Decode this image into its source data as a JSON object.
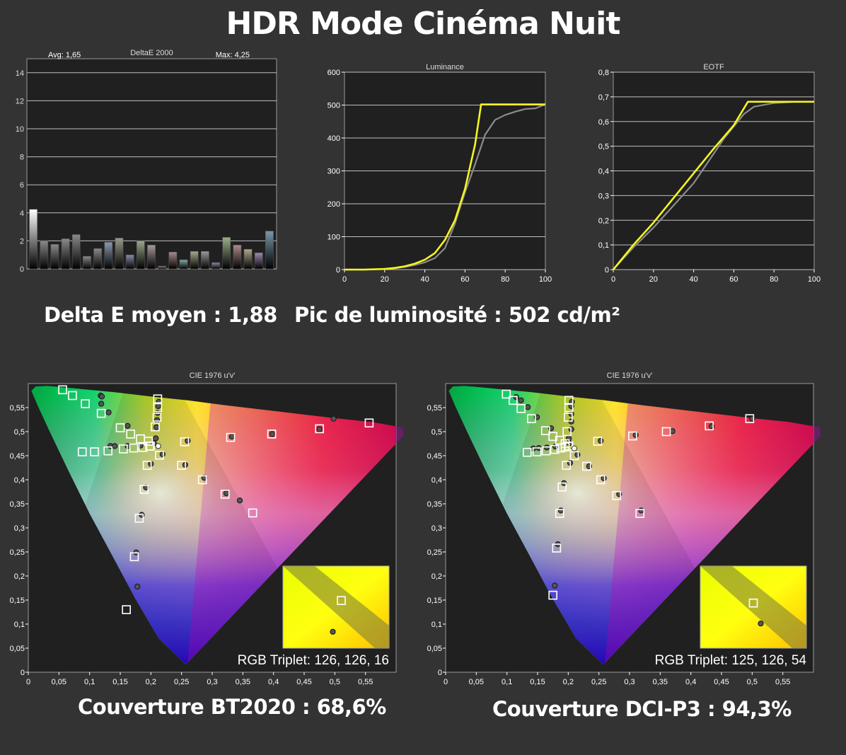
{
  "page": {
    "title": "HDR Mode Cinéma Nuit",
    "delta_e_summary": "Delta E moyen : 1,88",
    "peak_summary": "Pic de luminosité : 502 cd/m²",
    "bt2020_coverage": "Couverture BT2020 : 68,6%",
    "dcip3_coverage": "Couverture DCI-P3 : 94,3%"
  },
  "colors": {
    "background": "#333333",
    "plot_bg": "#202020",
    "grid": "#bfbfbf",
    "target_line": "#f5f521",
    "measured_line": "#8c8c8c"
  },
  "chart_data": [
    {
      "id": "deltae",
      "type": "bar",
      "title": "DeltaE 2000",
      "avg_label": "Avg: 1,65",
      "max_label": "Max: 4,25",
      "ylim": [
        0,
        15
      ],
      "yticks": [
        0,
        2,
        4,
        6,
        8,
        10,
        12,
        14
      ],
      "values": [
        4.25,
        2.0,
        1.75,
        2.15,
        2.45,
        0.9,
        1.45,
        1.9,
        2.2,
        1.0,
        2.0,
        1.7,
        0.2,
        1.2,
        0.65,
        1.25,
        1.25,
        0.45,
        2.25,
        1.7,
        1.4,
        1.15,
        2.7
      ],
      "bar_colors": [
        "#ffffff",
        "#8a8a8a",
        "#8a8a8a",
        "#8a8a8a",
        "#8a8a8a",
        "#8a8a8a",
        "#8a8a8a",
        "#8a9ab0",
        "#9a9a8a",
        "#8a8aa8",
        "#9aa88a",
        "#a89a9a",
        "#8a8a8a",
        "#a88a8a",
        "#8aa8a8",
        "#a8a88a",
        "#9a9a9a",
        "#8a8aa8",
        "#9ab08a",
        "#b08a8a",
        "#b0a88a",
        "#a08ab0",
        "#7a98a8"
      ]
    },
    {
      "id": "luminance",
      "type": "line",
      "title": "Luminance",
      "xlim": [
        0,
        100
      ],
      "ylim": [
        0,
        600
      ],
      "xticks": [
        0,
        20,
        40,
        60,
        80,
        100
      ],
      "yticks": [
        0,
        100,
        200,
        300,
        400,
        500,
        600
      ],
      "series": [
        {
          "x": [
            0,
            10,
            20,
            25,
            30,
            35,
            40,
            45,
            50,
            55,
            60,
            65,
            68,
            70,
            80,
            90,
            95,
            100
          ],
          "y": [
            0,
            0,
            2,
            5,
            10,
            18,
            30,
            50,
            90,
            150,
            245,
            380,
            502,
            502,
            502,
            502,
            502,
            502
          ]
        },
        {
          "x": [
            0,
            10,
            20,
            25,
            30,
            35,
            40,
            45,
            50,
            55,
            60,
            65,
            70,
            75,
            80,
            85,
            90,
            95,
            100
          ],
          "y": [
            0,
            0,
            2,
            4,
            8,
            14,
            22,
            35,
            65,
            140,
            235,
            320,
            410,
            455,
            470,
            480,
            488,
            490,
            502
          ]
        }
      ]
    },
    {
      "id": "eotf",
      "type": "line",
      "title": "EOTF",
      "xlim": [
        0,
        100
      ],
      "ylim": [
        0,
        0.8
      ],
      "xticks": [
        0,
        20,
        40,
        60,
        80,
        100
      ],
      "yticks": [
        0,
        0.1,
        0.2,
        0.3,
        0.4,
        0.5,
        0.6,
        0.7,
        0.8
      ],
      "xtick_labels": [
        "0",
        "20",
        "40",
        "60",
        "80",
        "100"
      ],
      "ytick_labels": [
        "0",
        "0,1",
        "0,2",
        "0,3",
        "0,4",
        "0,5",
        "0,6",
        "0,7",
        "0,8"
      ],
      "series": [
        {
          "x": [
            0,
            5,
            10,
            20,
            30,
            40,
            50,
            60,
            67,
            70,
            80,
            90,
            100
          ],
          "y": [
            0,
            0.05,
            0.1,
            0.19,
            0.29,
            0.39,
            0.49,
            0.585,
            0.68,
            0.68,
            0.68,
            0.68,
            0.68
          ]
        },
        {
          "x": [
            0,
            10,
            20,
            30,
            40,
            45,
            50,
            55,
            60,
            65,
            70,
            80,
            90,
            100
          ],
          "y": [
            0,
            0.09,
            0.17,
            0.26,
            0.35,
            0.41,
            0.47,
            0.53,
            0.58,
            0.63,
            0.66,
            0.675,
            0.68,
            0.68
          ]
        }
      ]
    },
    {
      "id": "cie-bt2020",
      "type": "scatter",
      "title": "CIE 1976 u'v'",
      "xlim": [
        0,
        0.6
      ],
      "ylim": [
        0,
        0.6
      ],
      "xtick_labels": [
        "0",
        "0,05",
        "0,1",
        "0,15",
        "0,2",
        "0,25",
        "0,3",
        "0,35",
        "0,4",
        "0,45",
        "0,5",
        "0,55"
      ],
      "ytick_labels": [
        "0",
        "0,05",
        "0,1",
        "0,15",
        "0,2",
        "0,25",
        "0,3",
        "0,35",
        "0,4",
        "0,45",
        "0,5",
        "0,55"
      ],
      "triplet_label": "RGB Triplet: 126, 126, 16",
      "targets": [
        [
          0.056,
          0.587
        ],
        [
          0.072,
          0.575
        ],
        [
          0.093,
          0.558
        ],
        [
          0.119,
          0.538
        ],
        [
          0.15,
          0.508
        ],
        [
          0.167,
          0.495
        ],
        [
          0.183,
          0.485
        ],
        [
          0.196,
          0.48
        ],
        [
          0.207,
          0.51
        ],
        [
          0.21,
          0.53
        ],
        [
          0.211,
          0.55
        ],
        [
          0.211,
          0.568
        ],
        [
          0.255,
          0.479
        ],
        [
          0.33,
          0.488
        ],
        [
          0.397,
          0.495
        ],
        [
          0.475,
          0.506
        ],
        [
          0.556,
          0.518
        ],
        [
          0.088,
          0.458
        ],
        [
          0.108,
          0.458
        ],
        [
          0.13,
          0.46
        ],
        [
          0.155,
          0.464
        ],
        [
          0.172,
          0.466
        ],
        [
          0.187,
          0.467
        ],
        [
          0.198,
          0.47
        ],
        [
          0.199,
          0.47
        ],
        [
          0.214,
          0.451
        ],
        [
          0.25,
          0.43
        ],
        [
          0.284,
          0.4
        ],
        [
          0.321,
          0.37
        ],
        [
          0.366,
          0.331
        ],
        [
          0.194,
          0.43
        ],
        [
          0.189,
          0.38
        ],
        [
          0.181,
          0.32
        ],
        [
          0.173,
          0.24
        ],
        [
          0.16,
          0.13
        ]
      ],
      "measured": [
        [
          0.118,
          0.575
        ],
        [
          0.12,
          0.573
        ],
        [
          0.119,
          0.558
        ],
        [
          0.131,
          0.54
        ],
        [
          0.162,
          0.512
        ],
        [
          0.213,
          0.562
        ],
        [
          0.212,
          0.553
        ],
        [
          0.211,
          0.539
        ],
        [
          0.21,
          0.524
        ],
        [
          0.209,
          0.509
        ],
        [
          0.208,
          0.486
        ],
        [
          0.205,
          0.476
        ],
        [
          0.134,
          0.47
        ],
        [
          0.141,
          0.47
        ],
        [
          0.162,
          0.47
        ],
        [
          0.183,
          0.471
        ],
        [
          0.219,
          0.453
        ],
        [
          0.256,
          0.431
        ],
        [
          0.287,
          0.404
        ],
        [
          0.323,
          0.372
        ],
        [
          0.345,
          0.357
        ],
        [
          0.26,
          0.481
        ],
        [
          0.332,
          0.49
        ],
        [
          0.398,
          0.495
        ],
        [
          0.475,
          0.505
        ],
        [
          0.498,
          0.527
        ],
        [
          0.2,
          0.433
        ],
        [
          0.192,
          0.384
        ],
        [
          0.185,
          0.327
        ],
        [
          0.176,
          0.249
        ],
        [
          0.178,
          0.178
        ]
      ],
      "reference_point": [
        0.205,
        0.476
      ],
      "inset": {
        "target": [
          0.55,
          0.58
        ],
        "measured": [
          0.47,
          0.2
        ]
      }
    },
    {
      "id": "cie-dcip3",
      "type": "scatter",
      "title": "CIE 1976 u'v'",
      "xlim": [
        0,
        0.6
      ],
      "ylim": [
        0,
        0.6
      ],
      "xtick_labels": [
        "0",
        "0,05",
        "0,1",
        "0,15",
        "0,2",
        "0,25",
        "0,3",
        "0,35",
        "0,4",
        "0,45",
        "0,5",
        "0,55"
      ],
      "ytick_labels": [
        "0",
        "0,05",
        "0,1",
        "0,15",
        "0,2",
        "0,25",
        "0,3",
        "0,35",
        "0,4",
        "0,45",
        "0,5",
        "0,55"
      ],
      "triplet_label": "RGB Triplet: 125, 126, 54",
      "targets": [
        [
          0.099,
          0.578
        ],
        [
          0.11,
          0.565
        ],
        [
          0.123,
          0.548
        ],
        [
          0.14,
          0.527
        ],
        [
          0.163,
          0.502
        ],
        [
          0.175,
          0.49
        ],
        [
          0.186,
          0.482
        ],
        [
          0.195,
          0.475
        ],
        [
          0.198,
          0.5
        ],
        [
          0.2,
          0.53
        ],
        [
          0.201,
          0.55
        ],
        [
          0.201,
          0.565
        ],
        [
          0.248,
          0.48
        ],
        [
          0.305,
          0.491
        ],
        [
          0.36,
          0.5
        ],
        [
          0.43,
          0.512
        ],
        [
          0.496,
          0.527
        ],
        [
          0.133,
          0.457
        ],
        [
          0.149,
          0.458
        ],
        [
          0.164,
          0.46
        ],
        [
          0.178,
          0.463
        ],
        [
          0.188,
          0.466
        ],
        [
          0.195,
          0.468
        ],
        [
          0.2,
          0.47
        ],
        [
          0.201,
          0.47
        ],
        [
          0.21,
          0.45
        ],
        [
          0.23,
          0.428
        ],
        [
          0.253,
          0.4
        ],
        [
          0.279,
          0.367
        ],
        [
          0.317,
          0.33
        ],
        [
          0.197,
          0.43
        ],
        [
          0.19,
          0.385
        ],
        [
          0.186,
          0.33
        ],
        [
          0.181,
          0.258
        ],
        [
          0.175,
          0.16
        ]
      ],
      "measured": [
        [
          0.115,
          0.572
        ],
        [
          0.123,
          0.565
        ],
        [
          0.134,
          0.551
        ],
        [
          0.149,
          0.53
        ],
        [
          0.172,
          0.507
        ],
        [
          0.206,
          0.562
        ],
        [
          0.205,
          0.553
        ],
        [
          0.205,
          0.537
        ],
        [
          0.205,
          0.521
        ],
        [
          0.205,
          0.505
        ],
        [
          0.201,
          0.486
        ],
        [
          0.202,
          0.476
        ],
        [
          0.143,
          0.465
        ],
        [
          0.152,
          0.466
        ],
        [
          0.165,
          0.467
        ],
        [
          0.179,
          0.469
        ],
        [
          0.215,
          0.452
        ],
        [
          0.234,
          0.428
        ],
        [
          0.258,
          0.403
        ],
        [
          0.283,
          0.37
        ],
        [
          0.319,
          0.336
        ],
        [
          0.253,
          0.481
        ],
        [
          0.31,
          0.493
        ],
        [
          0.37,
          0.501
        ],
        [
          0.434,
          0.511
        ],
        [
          0.5,
          0.527
        ],
        [
          0.203,
          0.435
        ],
        [
          0.193,
          0.393
        ],
        [
          0.188,
          0.336
        ],
        [
          0.183,
          0.266
        ],
        [
          0.178,
          0.18
        ]
      ],
      "reference_point": [
        0.203,
        0.471
      ],
      "inset": {
        "target": [
          0.5,
          0.55
        ],
        "measured": [
          0.57,
          0.3
        ]
      }
    }
  ]
}
